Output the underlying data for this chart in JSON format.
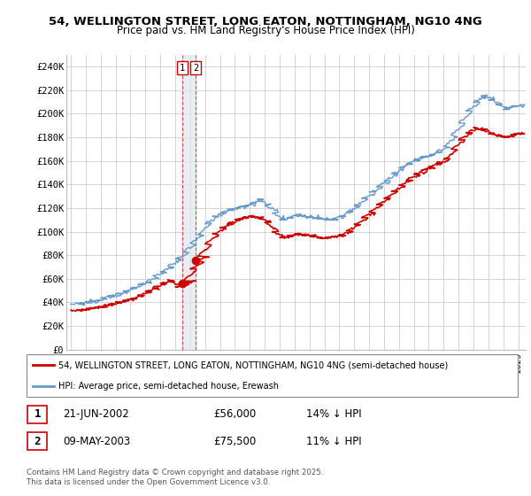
{
  "title": "54, WELLINGTON STREET, LONG EATON, NOTTINGHAM, NG10 4NG",
  "subtitle": "Price paid vs. HM Land Registry's House Price Index (HPI)",
  "legend_line1": "54, WELLINGTON STREET, LONG EATON, NOTTINGHAM, NG10 4NG (semi-detached house)",
  "legend_line2": "HPI: Average price, semi-detached house, Erewash",
  "transaction1_date": "21-JUN-2002",
  "transaction1_price": "£56,000",
  "transaction1_hpi": "14% ↓ HPI",
  "transaction2_date": "09-MAY-2003",
  "transaction2_price": "£75,500",
  "transaction2_hpi": "11% ↓ HPI",
  "copyright": "Contains HM Land Registry data © Crown copyright and database right 2025.\nThis data is licensed under the Open Government Licence v3.0.",
  "line_property_color": "#cc0000",
  "line_hpi_color": "#6699cc",
  "vline_color": "#dd4444",
  "vband_color": "#dde8f0",
  "background_color": "#ffffff",
  "grid_color": "#cccccc",
  "ylim": [
    0,
    250000
  ],
  "yticks": [
    0,
    20000,
    40000,
    60000,
    80000,
    100000,
    120000,
    140000,
    160000,
    180000,
    200000,
    220000,
    240000
  ],
  "sale1_x": 2002.47,
  "sale1_y": 56000,
  "sale2_x": 2003.36,
  "sale2_y": 75500,
  "xmin": 1994.7,
  "xmax": 2025.5
}
